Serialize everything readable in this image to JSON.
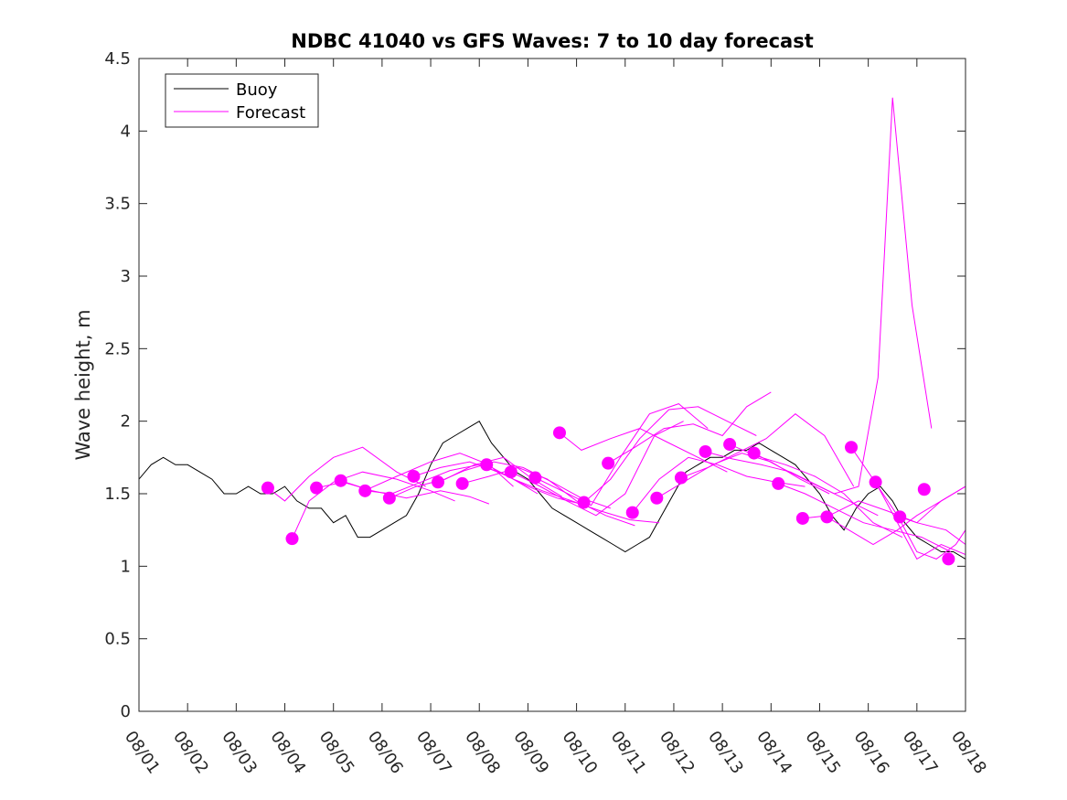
{
  "chart_data": {
    "type": "line",
    "title": "NDBC 41040 vs GFS Waves: 7 to 10 day forecast",
    "xlabel": "",
    "ylabel": "Wave height, m",
    "ylim": [
      0,
      4.5
    ],
    "xlim": [
      0,
      17
    ],
    "yticks": [
      "0",
      "0.5",
      "1",
      "1.5",
      "2",
      "2.5",
      "3",
      "3.5",
      "4",
      "4.5"
    ],
    "xticks": [
      "08/01",
      "08/02",
      "08/03",
      "08/04",
      "08/05",
      "08/06",
      "08/07",
      "08/08",
      "08/09",
      "08/10",
      "08/11",
      "08/12",
      "08/13",
      "08/14",
      "08/15",
      "08/16",
      "08/17",
      "08/18"
    ],
    "legend": {
      "position": "top-left",
      "entries": [
        "Buoy",
        "Forecast"
      ]
    },
    "colors": {
      "buoy": "#000000",
      "forecast": "#ff00ff"
    },
    "series": [
      {
        "name": "Buoy",
        "x": [
          0,
          0.25,
          0.5,
          0.75,
          1.0,
          1.25,
          1.5,
          1.75,
          2.0,
          2.25,
          2.5,
          2.75,
          3.0,
          3.25,
          3.5,
          3.75,
          4.0,
          4.25,
          4.5,
          4.75,
          5.0,
          5.25,
          5.5,
          5.75,
          6.0,
          6.25,
          6.5,
          6.75,
          7.0,
          7.25,
          7.5,
          7.75,
          8.0,
          8.25,
          8.5,
          8.75,
          9.0,
          9.25,
          9.5,
          9.75,
          10.0,
          10.25,
          10.5,
          10.75,
          11.0,
          11.25,
          11.5,
          11.75,
          12.0,
          12.25,
          12.5,
          12.75,
          13.0,
          13.25,
          13.5,
          13.75,
          14.0,
          14.25,
          14.5,
          14.75,
          15.0,
          15.25,
          15.5,
          15.75,
          16.0,
          16.25,
          16.5,
          16.75,
          17.0
        ],
        "values": [
          1.6,
          1.7,
          1.75,
          1.7,
          1.7,
          1.65,
          1.6,
          1.5,
          1.5,
          1.55,
          1.5,
          1.5,
          1.55,
          1.45,
          1.4,
          1.4,
          1.3,
          1.35,
          1.2,
          1.2,
          1.25,
          1.3,
          1.35,
          1.5,
          1.7,
          1.85,
          1.9,
          1.95,
          2.0,
          1.85,
          1.75,
          1.65,
          1.6,
          1.5,
          1.4,
          1.35,
          1.3,
          1.25,
          1.2,
          1.15,
          1.1,
          1.15,
          1.2,
          1.35,
          1.5,
          1.65,
          1.7,
          1.75,
          1.75,
          1.8,
          1.8,
          1.85,
          1.8,
          1.75,
          1.7,
          1.6,
          1.5,
          1.35,
          1.25,
          1.4,
          1.5,
          1.55,
          1.45,
          1.3,
          1.2,
          1.15,
          1.1,
          1.1,
          1.05
        ]
      },
      {
        "name": "Forecast",
        "x": [
          2.65,
          3.0,
          3.5,
          4.0,
          4.6,
          5.3,
          5.9
        ],
        "values": [
          1.54,
          1.45,
          1.62,
          1.75,
          1.82,
          1.65,
          1.55
        ]
      },
      {
        "name": "Forecast",
        "x": [
          3.15,
          3.5,
          4.0,
          4.6,
          5.3,
          6.0,
          6.5
        ],
        "values": [
          1.19,
          1.45,
          1.58,
          1.65,
          1.6,
          1.52,
          1.45
        ]
      },
      {
        "name": "Forecast",
        "x": [
          3.65,
          4.2,
          4.8,
          5.5,
          6.2,
          6.8,
          7.2
        ],
        "values": [
          1.54,
          1.58,
          1.52,
          1.47,
          1.52,
          1.48,
          1.43
        ]
      },
      {
        "name": "Forecast",
        "x": [
          4.15,
          4.7,
          5.3,
          6.0,
          6.6,
          7.2,
          7.7
        ],
        "values": [
          1.59,
          1.53,
          1.62,
          1.72,
          1.78,
          1.7,
          1.55
        ]
      },
      {
        "name": "Forecast",
        "x": [
          4.65,
          5.2,
          5.8,
          6.4,
          7.0,
          7.6,
          8.2
        ],
        "values": [
          1.52,
          1.5,
          1.58,
          1.66,
          1.7,
          1.62,
          1.5
        ]
      },
      {
        "name": "Forecast",
        "x": [
          5.15,
          5.7,
          6.3,
          6.9,
          7.5,
          8.1,
          8.7
        ],
        "values": [
          1.47,
          1.55,
          1.6,
          1.7,
          1.75,
          1.6,
          1.48
        ]
      },
      {
        "name": "Forecast",
        "x": [
          5.65,
          6.2,
          6.8,
          7.4,
          8.0,
          8.6,
          9.2
        ],
        "values": [
          1.62,
          1.68,
          1.72,
          1.65,
          1.55,
          1.47,
          1.42
        ]
      },
      {
        "name": "Forecast",
        "x": [
          6.15,
          6.7,
          7.3,
          7.9,
          8.5,
          9.1,
          9.7
        ],
        "values": [
          1.58,
          1.66,
          1.72,
          1.68,
          1.58,
          1.47,
          1.4
        ]
      },
      {
        "name": "Forecast",
        "x": [
          6.65,
          7.2,
          7.8,
          8.4,
          9.0,
          9.6,
          10.2
        ],
        "values": [
          1.57,
          1.62,
          1.68,
          1.6,
          1.45,
          1.35,
          1.28
        ]
      },
      {
        "name": "Forecast",
        "x": [
          7.15,
          7.7,
          8.3,
          8.9,
          9.5,
          10.1,
          10.7
        ],
        "values": [
          1.7,
          1.6,
          1.52,
          1.45,
          1.38,
          1.32,
          1.3
        ]
      },
      {
        "name": "Forecast",
        "x": [
          7.65,
          8.2,
          8.8,
          9.4,
          10.0,
          10.6,
          11.2
        ],
        "values": [
          1.65,
          1.56,
          1.45,
          1.35,
          1.5,
          1.9,
          2.0
        ]
      },
      {
        "name": "Forecast",
        "x": [
          8.15,
          8.7,
          9.3,
          9.9,
          10.5,
          11.1,
          11.7
        ],
        "values": [
          1.61,
          1.52,
          1.42,
          1.75,
          2.05,
          2.12,
          1.95
        ]
      },
      {
        "name": "Forecast",
        "x": [
          8.65,
          9.1,
          9.7,
          10.3,
          10.9,
          11.5,
          12.1
        ],
        "values": [
          1.92,
          1.8,
          1.88,
          1.95,
          1.85,
          1.75,
          1.65
        ]
      },
      {
        "name": "Forecast",
        "x": [
          9.15,
          9.7,
          10.3,
          10.9,
          11.5,
          12.1,
          12.7
        ],
        "values": [
          1.44,
          1.6,
          1.88,
          2.08,
          2.1,
          2.0,
          1.9
        ]
      },
      {
        "name": "Forecast",
        "x": [
          9.65,
          10.2,
          10.8,
          11.4,
          12.0,
          12.5,
          13.0
        ],
        "values": [
          1.71,
          1.82,
          1.95,
          1.98,
          1.9,
          2.1,
          2.2
        ]
      },
      {
        "name": "Forecast",
        "x": [
          10.15,
          10.7,
          11.3,
          11.9,
          12.5,
          13.1,
          13.7
        ],
        "values": [
          1.37,
          1.6,
          1.75,
          1.7,
          1.62,
          1.58,
          1.55
        ]
      },
      {
        "name": "Forecast",
        "x": [
          10.65,
          11.2,
          11.8,
          12.4,
          13.0,
          13.6,
          14.2
        ],
        "values": [
          1.47,
          1.58,
          1.7,
          1.78,
          1.72,
          1.6,
          1.5
        ]
      },
      {
        "name": "Forecast",
        "x": [
          11.15,
          11.7,
          12.3,
          12.9,
          13.5,
          14.1,
          14.7
        ],
        "values": [
          1.61,
          1.68,
          1.78,
          1.88,
          2.05,
          1.9,
          1.55
        ]
      },
      {
        "name": "Forecast",
        "x": [
          11.65,
          12.2,
          12.8,
          13.4,
          14.0,
          14.6,
          15.2
        ],
        "values": [
          1.79,
          1.74,
          1.7,
          1.65,
          1.55,
          1.45,
          1.35
        ]
      },
      {
        "name": "Forecast",
        "x": [
          12.15,
          12.7,
          13.3,
          13.9,
          14.5,
          15.1,
          15.7
        ],
        "values": [
          1.84,
          1.76,
          1.7,
          1.62,
          1.5,
          1.3,
          1.2
        ]
      },
      {
        "name": "Forecast",
        "x": [
          12.65,
          13.2,
          13.8,
          14.3,
          14.8,
          15.2,
          15.5,
          15.9,
          16.3
        ],
        "values": [
          1.78,
          1.68,
          1.58,
          1.5,
          1.55,
          2.3,
          4.23,
          2.8,
          1.95
        ]
      },
      {
        "name": "Forecast",
        "x": [
          13.15,
          13.7,
          14.3,
          14.9,
          15.5,
          16.1,
          16.7
        ],
        "values": [
          1.57,
          1.5,
          1.4,
          1.3,
          1.25,
          1.2,
          1.1
        ]
      },
      {
        "name": "Forecast",
        "x": [
          13.65,
          14.2,
          14.8,
          15.4,
          16.0,
          16.6,
          17.0
        ],
        "values": [
          1.33,
          1.35,
          1.45,
          1.38,
          1.3,
          1.25,
          1.15
        ]
      },
      {
        "name": "Forecast",
        "x": [
          14.15,
          14.6,
          15.1,
          15.6,
          16.0,
          16.5,
          17.0
        ],
        "values": [
          1.34,
          1.25,
          1.15,
          1.25,
          1.35,
          1.45,
          1.55
        ]
      },
      {
        "name": "Forecast",
        "x": [
          14.65,
          15.1,
          15.6,
          16.0,
          16.4,
          16.8,
          17.0
        ],
        "values": [
          1.82,
          1.6,
          1.35,
          1.1,
          1.05,
          1.15,
          1.25
        ]
      },
      {
        "name": "Forecast",
        "x": [
          15.15,
          15.6,
          16.0,
          16.5,
          17.0
        ],
        "values": [
          1.58,
          1.3,
          1.05,
          1.15,
          1.08
        ]
      },
      {
        "name": "Forecast",
        "x": [
          15.65,
          16.0,
          16.5,
          17.0
        ],
        "values": [
          1.34,
          1.3,
          1.45,
          1.55
        ]
      }
    ],
    "forecast_markers": {
      "x": [
        2.65,
        3.15,
        3.65,
        4.15,
        4.65,
        5.15,
        5.65,
        6.15,
        6.65,
        7.15,
        7.65,
        8.15,
        8.65,
        9.15,
        9.65,
        10.15,
        10.65,
        11.15,
        11.65,
        12.15,
        12.65,
        13.15,
        13.65,
        14.15,
        14.65,
        15.15,
        15.65,
        16.15,
        16.65
      ],
      "values": [
        1.54,
        1.19,
        1.54,
        1.59,
        1.52,
        1.47,
        1.62,
        1.58,
        1.57,
        1.7,
        1.65,
        1.61,
        1.92,
        1.44,
        1.71,
        1.37,
        1.47,
        1.61,
        1.79,
        1.84,
        1.78,
        1.57,
        1.33,
        1.34,
        1.82,
        1.58,
        1.34,
        1.53,
        1.05
      ]
    }
  }
}
